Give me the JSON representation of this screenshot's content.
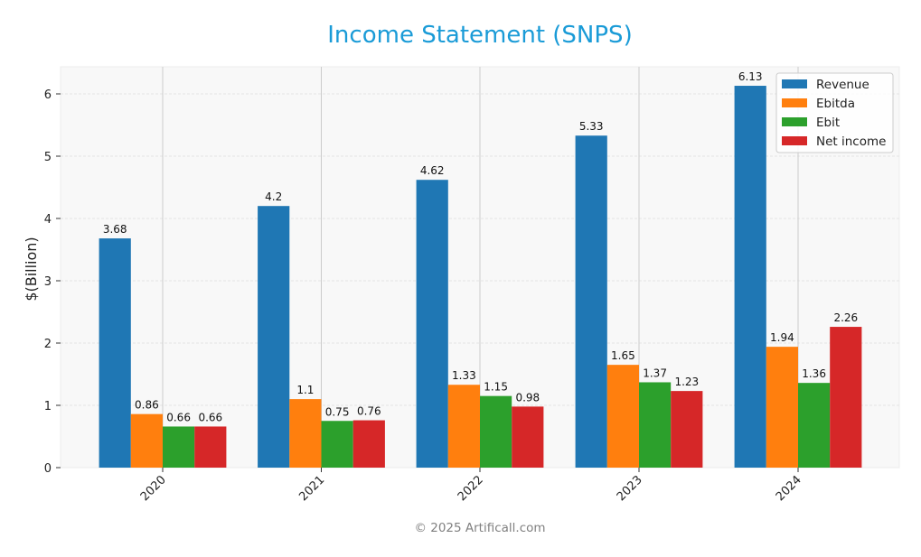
{
  "title": "Income Statement (SNPS)",
  "footer": "© 2025 Artificall.com",
  "colors": {
    "title": "#1a9bd7",
    "plot_bg": "#f8f8f8",
    "Revenue": "#1f77b4",
    "Ebitda": "#ff7f0e",
    "Ebit": "#2ca02c",
    "Net income": "#d62728"
  },
  "chart_data": {
    "type": "bar",
    "title": "Income Statement (SNPS)",
    "xlabel": "",
    "ylabel": "$(Billion)",
    "ylim": [
      0,
      6.43
    ],
    "yticks": [
      0,
      1,
      2,
      3,
      4,
      5,
      6
    ],
    "categories": [
      "2020",
      "2021",
      "2022",
      "2023",
      "2024"
    ],
    "series": [
      {
        "name": "Revenue",
        "values": [
          3.68,
          4.2,
          4.62,
          5.33,
          6.13
        ]
      },
      {
        "name": "Ebitda",
        "values": [
          0.86,
          1.1,
          1.33,
          1.65,
          1.94
        ]
      },
      {
        "name": "Ebit",
        "values": [
          0.66,
          0.75,
          1.15,
          1.37,
          1.36
        ]
      },
      {
        "name": "Net income",
        "values": [
          0.66,
          0.76,
          0.98,
          1.23,
          2.26
        ]
      }
    ],
    "labels": [
      [
        "3.68",
        "4.2",
        "4.62",
        "5.33",
        "6.13"
      ],
      [
        "0.86",
        "1.1",
        "1.33",
        "1.65",
        "1.94"
      ],
      [
        "0.66",
        "0.75",
        "1.15",
        "1.37",
        "1.36"
      ],
      [
        "0.66",
        "0.76",
        "0.98",
        "1.23",
        "2.26"
      ]
    ],
    "grid": true,
    "legend_position": "upper right"
  }
}
